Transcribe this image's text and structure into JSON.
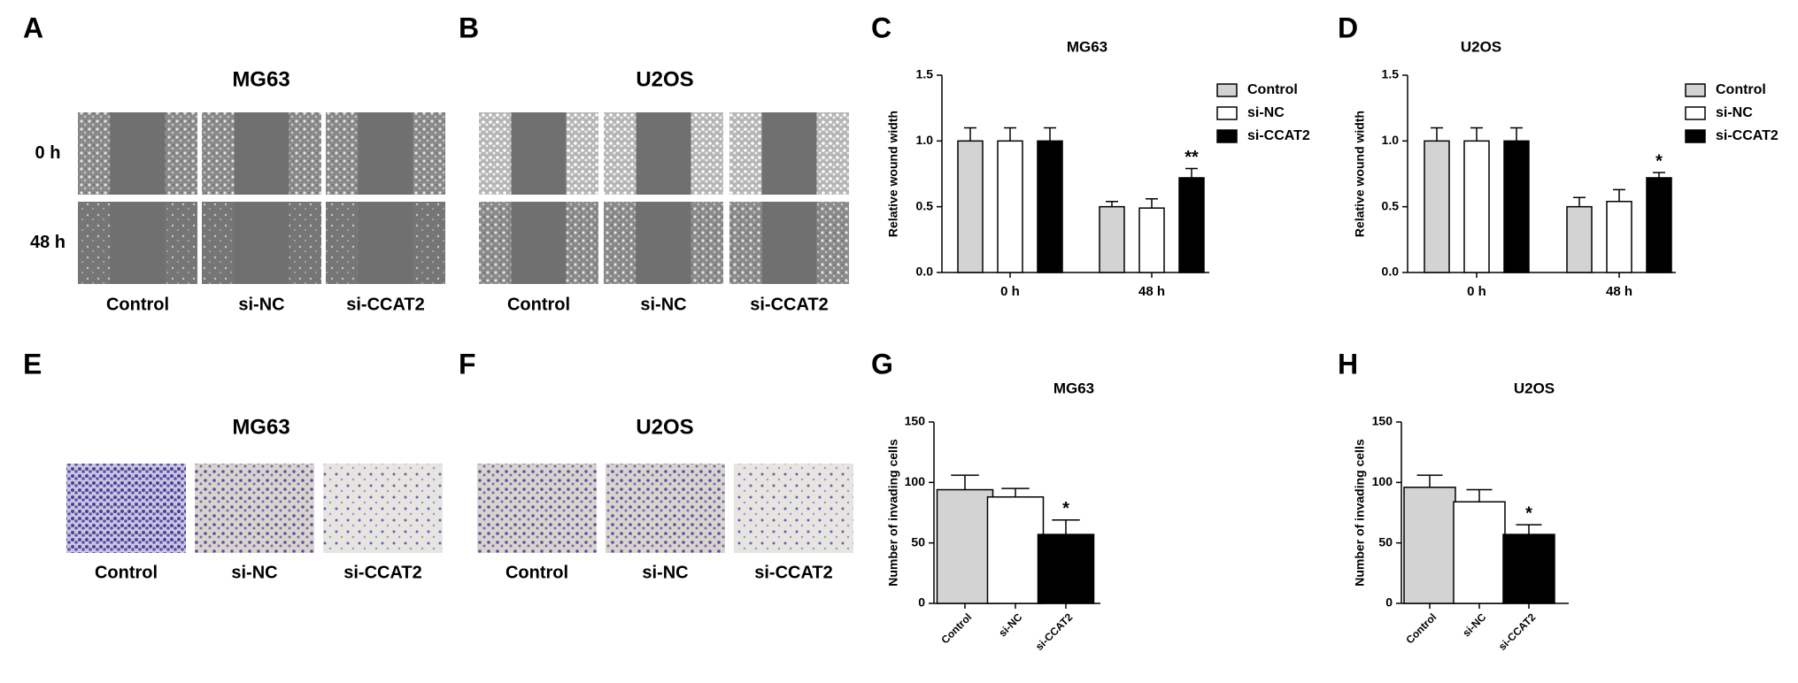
{
  "panel_letters": [
    "A",
    "B",
    "C",
    "D",
    "E",
    "F",
    "G",
    "H"
  ],
  "image_panels": [
    {
      "title": "MG63",
      "row_labels": [
        "0 h",
        "48 h"
      ],
      "column_labels": [
        "Control",
        "si-NC",
        "si-CCAT2"
      ]
    },
    {
      "title": "U2OS",
      "column_labels": [
        "Control",
        "si-NC",
        "si-CCAT2"
      ]
    },
    {
      "title": "MG63",
      "column_labels": [
        "Control",
        "si-NC",
        "si-CCAT2"
      ]
    },
    {
      "title": "U2OS",
      "column_labels": [
        "Control",
        "si-NC",
        "si-CCAT2"
      ]
    }
  ],
  "chart_data": [
    {
      "type": "bar",
      "title": "MG63",
      "y_label": "Relative wound width",
      "categories": [
        "0 h",
        "48 h"
      ],
      "series": [
        {
          "name": "Control",
          "color": "#d3d3d3",
          "values": [
            1.0,
            0.5
          ],
          "errors": [
            0.1,
            0.04
          ]
        },
        {
          "name": "si-NC",
          "color": "#ffffff",
          "values": [
            1.0,
            0.49
          ],
          "errors": [
            0.1,
            0.07
          ]
        },
        {
          "name": "si-CCAT2",
          "color": "#000000",
          "values": [
            1.0,
            0.72
          ],
          "errors": [
            0.1,
            0.07
          ],
          "significance": [
            null,
            "**"
          ]
        }
      ],
      "ylim": [
        0,
        1.5
      ],
      "yticks": [
        {
          "value": 0,
          "label": "0.0"
        },
        {
          "value": 0.5,
          "label": "0.5"
        },
        {
          "value": 1,
          "label": "1.0"
        },
        {
          "value": 1.5,
          "label": "1.5"
        }
      ],
      "legend": "upper right"
    },
    {
      "type": "bar",
      "title": "U2OS",
      "y_label": "Relative wound width",
      "categories": [
        "0 h",
        "48 h"
      ],
      "series": [
        {
          "name": "Control",
          "color": "#d3d3d3",
          "values": [
            1.0,
            0.5
          ],
          "errors": [
            0.1,
            0.07
          ]
        },
        {
          "name": "si-NC",
          "color": "#ffffff",
          "values": [
            1.0,
            0.54
          ],
          "errors": [
            0.1,
            0.09
          ]
        },
        {
          "name": "si-CCAT2",
          "color": "#000000",
          "values": [
            1.0,
            0.72
          ],
          "errors": [
            0.1,
            0.04
          ],
          "significance": [
            null,
            "*"
          ]
        }
      ],
      "ylim": [
        0,
        1.5
      ],
      "yticks": [
        {
          "value": 0,
          "label": "0.0"
        },
        {
          "value": 0.5,
          "label": "0.5"
        },
        {
          "value": 1,
          "label": "1.0"
        },
        {
          "value": 1.5,
          "label": "1.5"
        }
      ],
      "legend": "upper right"
    },
    {
      "type": "bar",
      "title": "MG63",
      "y_label": "Number of invading cells",
      "categories": [
        "Control",
        "si-NC",
        "si-CCAT2"
      ],
      "values": [
        94,
        88,
        57
      ],
      "errors": [
        12,
        7,
        12
      ],
      "colors": [
        "#d3d3d3",
        "#ffffff",
        "#000000"
      ],
      "significance": [
        null,
        null,
        "*"
      ],
      "ylim": [
        0,
        150
      ],
      "yticks": [
        0,
        50,
        100,
        150
      ]
    },
    {
      "type": "bar",
      "title": "U2OS",
      "y_label": "Number of invading cells",
      "categories": [
        "Control",
        "si-NC",
        "si-CCAT2"
      ],
      "values": [
        96,
        84,
        57
      ],
      "errors": [
        10,
        10,
        8
      ],
      "colors": [
        "#d3d3d3",
        "#ffffff",
        "#000000"
      ],
      "significance": [
        null,
        null,
        "*"
      ],
      "ylim": [
        0,
        150
      ],
      "yticks": [
        0,
        50,
        100,
        150
      ]
    }
  ]
}
